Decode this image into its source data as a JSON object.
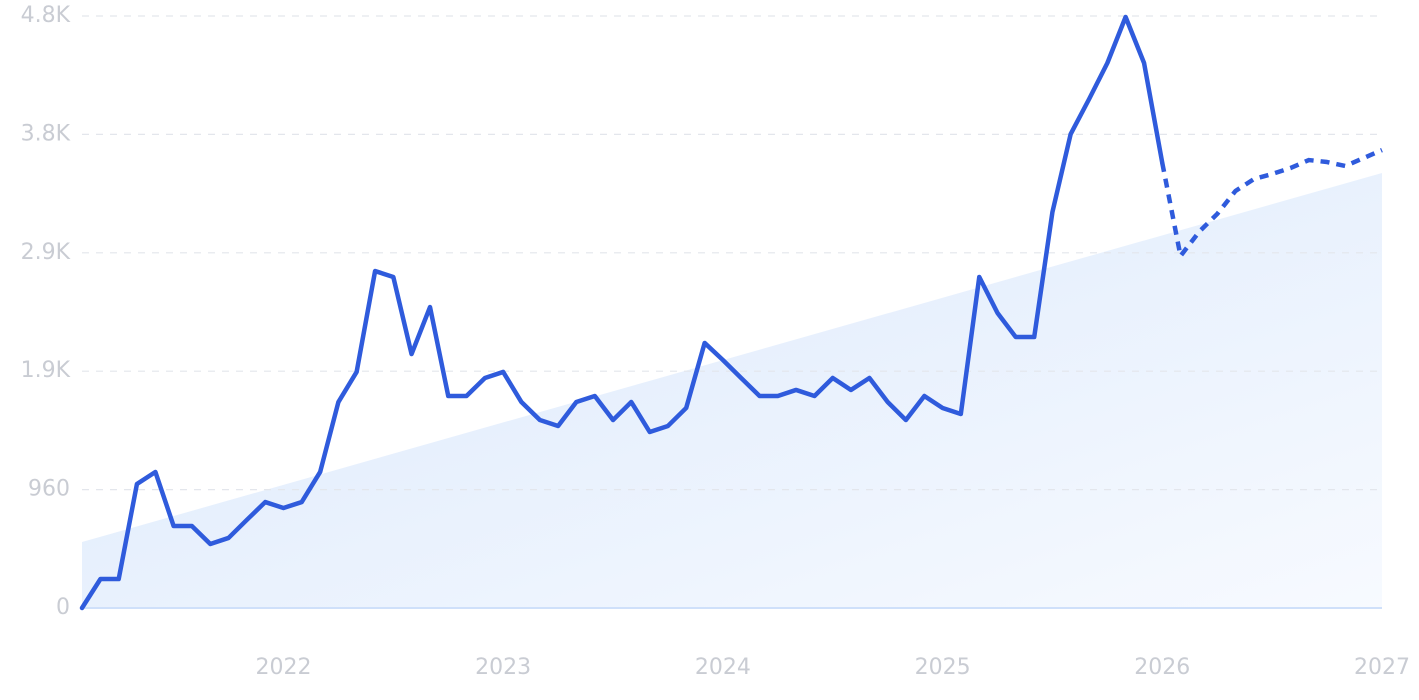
{
  "chart_data": {
    "type": "line",
    "x": [
      2021.083,
      2021.167,
      2021.25,
      2021.333,
      2021.417,
      2021.5,
      2021.583,
      2021.667,
      2021.75,
      2021.833,
      2021.917,
      2022,
      2022.083,
      2022.167,
      2022.25,
      2022.333,
      2022.417,
      2022.5,
      2022.583,
      2022.667,
      2022.75,
      2022.833,
      2022.917,
      2023,
      2023.083,
      2023.167,
      2023.25,
      2023.333,
      2023.417,
      2023.5,
      2023.583,
      2023.667,
      2023.75,
      2023.833,
      2023.917,
      2024,
      2024.083,
      2024.167,
      2024.25,
      2024.333,
      2024.417,
      2024.5,
      2024.583,
      2024.667,
      2024.75,
      2024.833,
      2024.917,
      2025,
      2025.083,
      2025.167,
      2025.25,
      2025.333,
      2025.417,
      2025.5,
      2025.583,
      2025.667,
      2025.75,
      2025.833,
      2025.917,
      2026,
      2026.083,
      2026.167,
      2026.25,
      2026.333,
      2026.417,
      2026.5,
      2026.583,
      2026.667,
      2026.75,
      2026.833,
      2026.917,
      2027
    ],
    "series": [
      {
        "color": "#2f5bdc",
        "style": "solid",
        "values": [
          0,
          235,
          235,
          1005,
          1103,
          665,
          665,
          519,
          568,
          714,
          859,
          811,
          859,
          1103,
          1670,
          1914,
          2732,
          2684,
          2059,
          2440,
          1719,
          1719,
          1865,
          1914,
          1670,
          1524,
          1476,
          1670,
          1719,
          1524,
          1670,
          1427,
          1476,
          1622,
          2149,
          2011,
          1865,
          1719,
          1719,
          1768,
          1719,
          1865,
          1768,
          1865,
          1670,
          1524,
          1719,
          1622,
          1573,
          2684,
          2392,
          2197,
          2197,
          3211,
          3843,
          4127,
          4419,
          4792,
          4419,
          3608,
          null,
          null,
          null,
          null,
          null,
          null,
          null,
          null,
          null,
          null,
          null,
          null
        ]
      },
      {
        "color": "#2f5bdc",
        "style": "dotted",
        "values": [
          null,
          null,
          null,
          null,
          null,
          null,
          null,
          null,
          null,
          null,
          null,
          null,
          null,
          null,
          null,
          null,
          null,
          null,
          null,
          null,
          null,
          null,
          null,
          null,
          null,
          null,
          null,
          null,
          null,
          null,
          null,
          null,
          null,
          null,
          null,
          null,
          null,
          null,
          null,
          null,
          null,
          null,
          null,
          null,
          null,
          null,
          null,
          null,
          null,
          null,
          null,
          null,
          null,
          null,
          null,
          null,
          null,
          null,
          null,
          3608,
          2854,
          3049,
          3195,
          3381,
          3478,
          3519,
          3567,
          3632,
          3616,
          3584,
          3649,
          3713
        ]
      }
    ],
    "trend": {
      "x": [
        2021.083,
        2027
      ],
      "values": [
        535,
        3527
      ],
      "color": "#dce9fb"
    },
    "xlim": [
      2021.083,
      2027
    ],
    "xticks": [
      2022,
      2023,
      2024,
      2025,
      2026,
      2027
    ],
    "ylim": [
      0,
      4800
    ],
    "yticks": [
      0,
      960,
      {
        "value": 1920,
        "label": "1.9K"
      },
      {
        "value": 2880,
        "label": "2.9K"
      },
      {
        "value": 3840,
        "label": "3.8K"
      },
      {
        "value": 4800,
        "label": "4.8K"
      }
    ],
    "grid": true
  }
}
